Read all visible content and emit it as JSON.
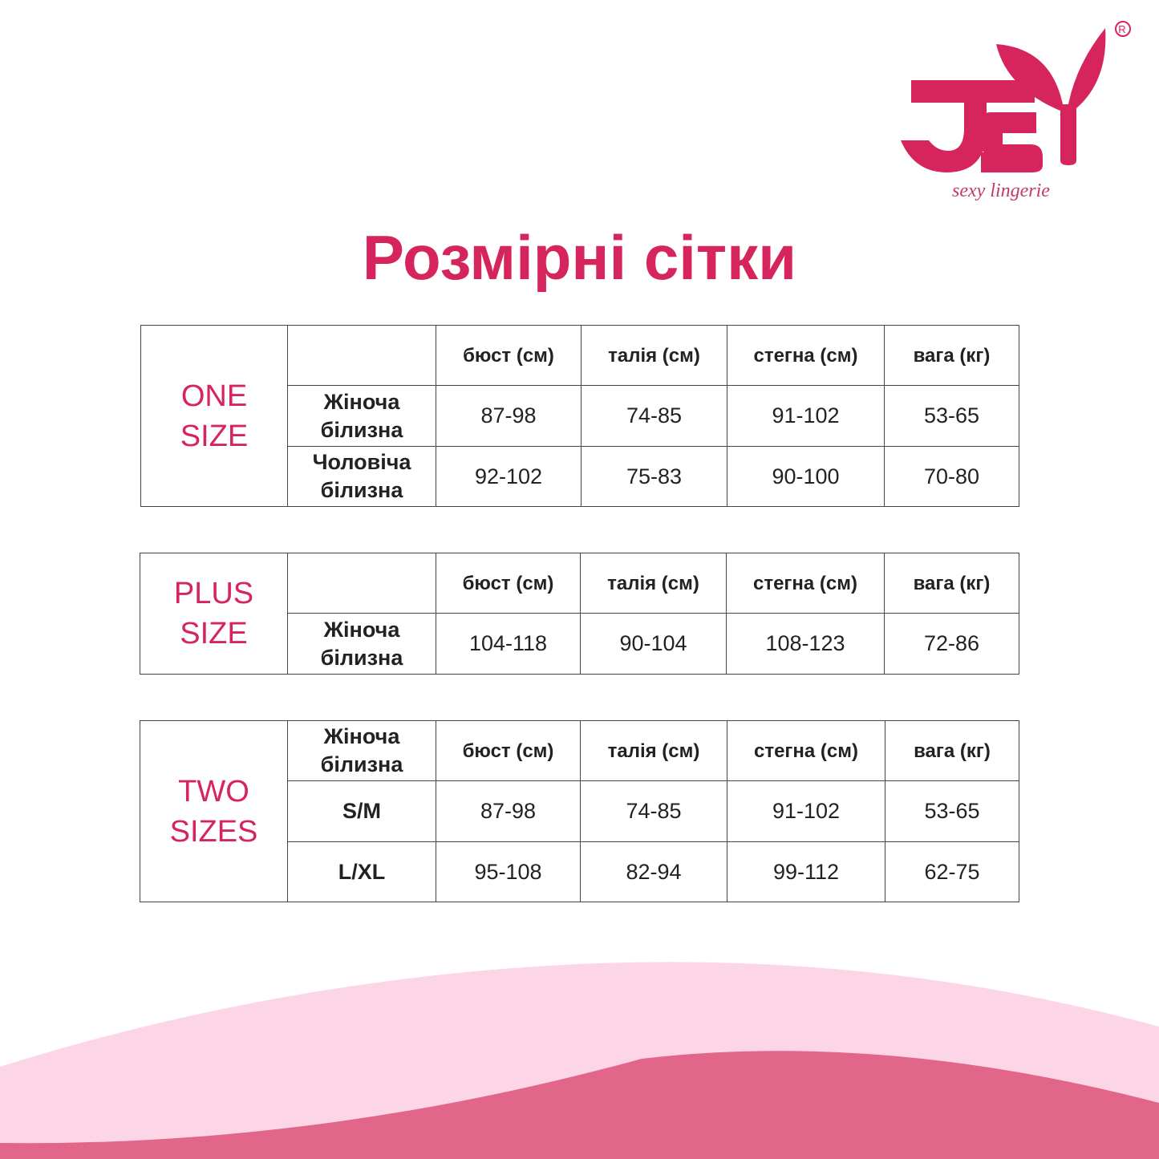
{
  "brand": {
    "name": "JSY",
    "tagline": "sexy lingerie",
    "registered": "®",
    "color": "#d6245c"
  },
  "title": "Розмірні сітки",
  "colors": {
    "accent": "#d6245c",
    "wave_light": "#fcd6e6",
    "wave_dark": "#e2668a",
    "border": "#444444"
  },
  "tables": [
    {
      "size_label": "ONE\nSIZE",
      "header": [
        "",
        "бюст (см)",
        "талія (см)",
        "стегна (см)",
        "вага (кг)"
      ],
      "rows": [
        [
          "Жіноча білизна",
          "87-98",
          "74-85",
          "91-102",
          "53-65"
        ],
        [
          "Чоловіча білизна",
          "92-102",
          "75-83",
          "90-100",
          "70-80"
        ]
      ]
    },
    {
      "size_label": "PLUS\nSIZE",
      "header": [
        "",
        "бюст (см)",
        "талія (см)",
        "стегна (см)",
        "вага (кг)"
      ],
      "rows": [
        [
          "Жіноча білизна",
          "104-118",
          "90-104",
          "108-123",
          "72-86"
        ]
      ]
    },
    {
      "size_label": "TWO\nSIZES",
      "header": [
        "Жіноча білизна",
        "бюст (см)",
        "талія (см)",
        "стегна (см)",
        "вага (кг)"
      ],
      "rows": [
        [
          "S/M",
          "87-98",
          "74-85",
          "91-102",
          "53-65"
        ],
        [
          "L/XL",
          "95-108",
          "82-94",
          "99-112",
          "62-75"
        ]
      ]
    }
  ]
}
